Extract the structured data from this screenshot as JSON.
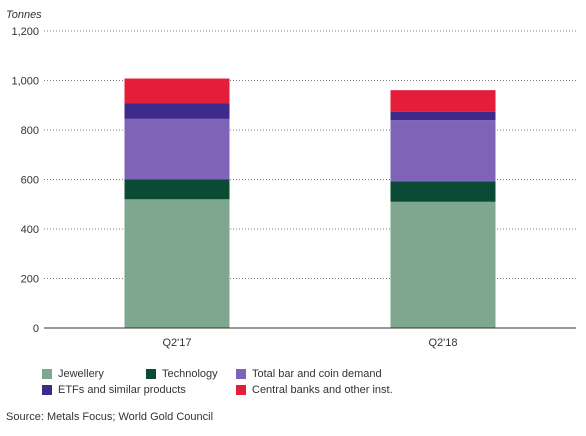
{
  "chart_data": {
    "type": "bar",
    "stacked": true,
    "ylabel": "Tonnes",
    "ylim": [
      0,
      1200
    ],
    "yticks": [
      0,
      200,
      400,
      600,
      800,
      1000,
      1200
    ],
    "ytick_labels": [
      "0",
      "200",
      "400",
      "600",
      "800",
      "1,000",
      "1,200"
    ],
    "categories": [
      "Q2'17",
      "Q2'18"
    ],
    "series": [
      {
        "name": "Jewellery",
        "color": "#7fa68e",
        "values": [
          520,
          510
        ]
      },
      {
        "name": "Technology",
        "color": "#0b4b35",
        "values": [
          80,
          83
        ]
      },
      {
        "name": "Total bar and coin demand",
        "color": "#7e63b8",
        "values": [
          245,
          247
        ]
      },
      {
        "name": "ETFs and similar products",
        "color": "#3d2a8a",
        "values": [
          62,
          33
        ]
      },
      {
        "name": "Central banks and other inst.",
        "color": "#e41e3a",
        "values": [
          101,
          88
        ]
      }
    ],
    "grid": true,
    "legend_position": "bottom",
    "source": "Source: Metals Focus; World Gold Council"
  }
}
